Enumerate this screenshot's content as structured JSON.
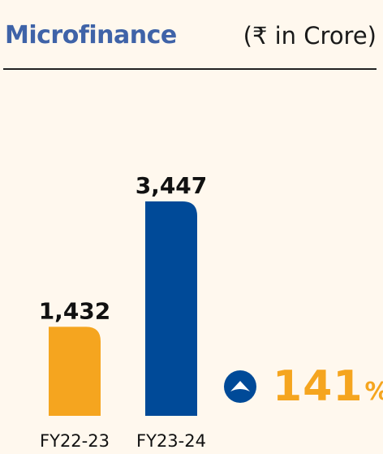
{
  "header": {
    "title": "Microfinance",
    "unit": "(₹ in Crore)"
  },
  "chart_data": {
    "type": "bar",
    "categories": [
      "FY22-23",
      "FY23-24"
    ],
    "values": [
      1432,
      3447
    ],
    "value_labels": [
      "1,432",
      "3,447"
    ],
    "colors": [
      "#f5a51f",
      "#004a98"
    ],
    "grid": false,
    "legend": "none"
  },
  "growth": {
    "value": "141",
    "unit": "%",
    "icon": "up-arrow-circle-icon",
    "icon_color": "#004a98",
    "color": "#f5a51f"
  }
}
